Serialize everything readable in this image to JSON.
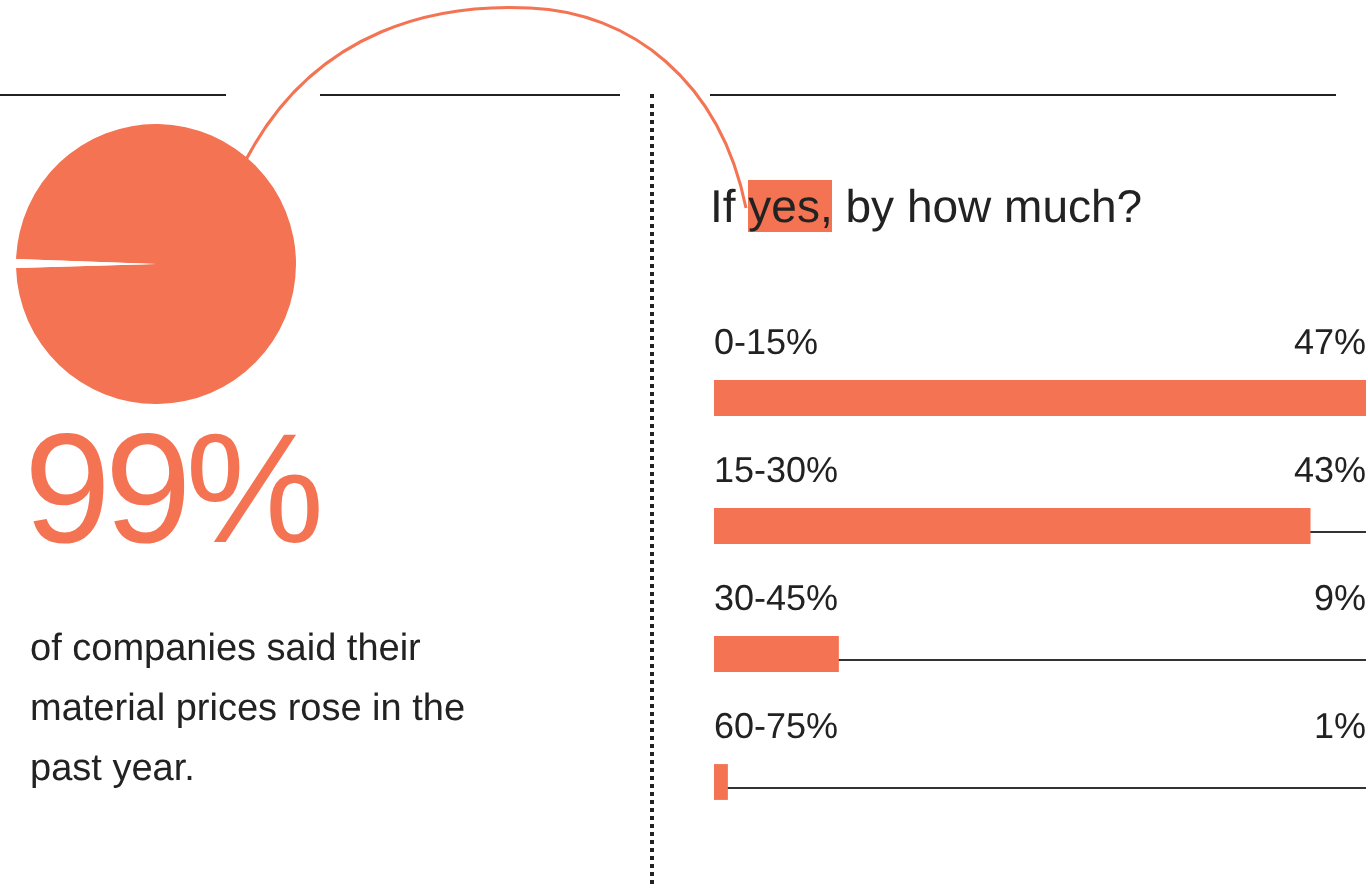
{
  "chart_data": [
    {
      "type": "pie",
      "categories": [
        null,
        null
      ],
      "values": [
        99,
        1
      ],
      "colors": [
        "#f47352",
        "#ffffff"
      ],
      "value_labels": [
        "99%",
        null
      ],
      "annotations": [
        "of companies said their material prices rose in the past year."
      ]
    },
    {
      "type": "bar",
      "orientation": "horizontal",
      "title": "If yes, by how much?",
      "categories": [
        "0-15%",
        "15-30%",
        "30-45%",
        "60-75%"
      ],
      "values": [
        47,
        43,
        9,
        1
      ],
      "value_labels": [
        "47%",
        "43%",
        "9%",
        "1%"
      ],
      "color": "#f47352",
      "xlim": [
        0,
        47
      ],
      "tick_labels": false,
      "legend": false
    }
  ]
}
